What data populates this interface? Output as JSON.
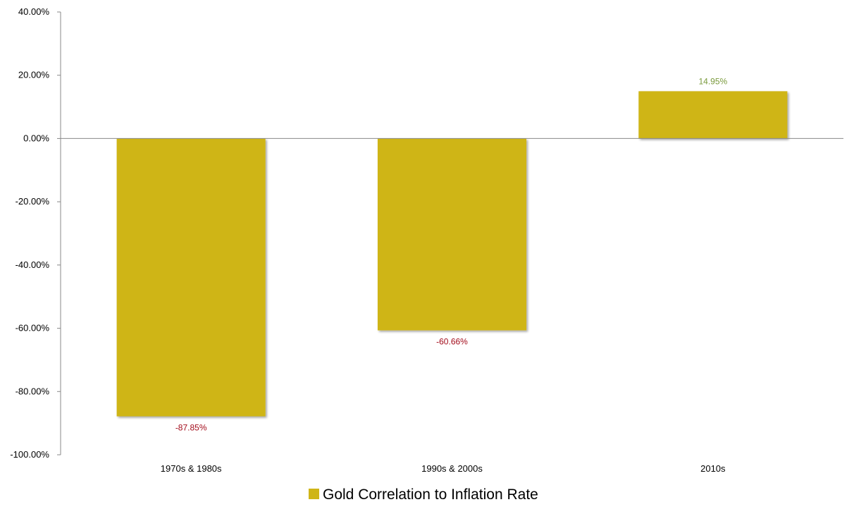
{
  "chart_data": {
    "type": "bar",
    "categories": [
      "1970s & 1980s",
      "1990s & 2000s",
      "2010s"
    ],
    "series": [
      {
        "name": "Gold Correlation to Inflation Rate",
        "values": [
          -87.85,
          -60.66,
          14.95
        ],
        "color": "#cfb517"
      }
    ],
    "data_labels": [
      "-87.85%",
      "-60.66%",
      "14.95%"
    ],
    "data_label_colors": {
      "negative": "#a30d1c",
      "positive": "#7a9a3c"
    },
    "ylim": [
      -100,
      40
    ],
    "yticks": [
      40,
      20,
      0,
      -20,
      -40,
      -60,
      -80,
      -100
    ],
    "ytick_labels": [
      "40.00%",
      "20.00%",
      "0.00%",
      "-20.00%",
      "-40.00%",
      "-60.00%",
      "-80.00%",
      "-100.00%"
    ],
    "title": "",
    "xlabel": "",
    "ylabel": "",
    "grid": false,
    "legend_position": "bottom"
  }
}
